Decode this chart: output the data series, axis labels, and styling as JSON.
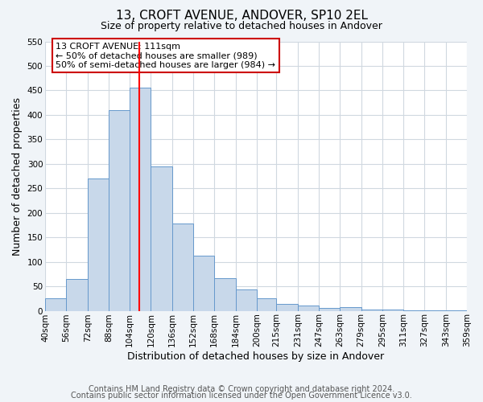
{
  "title": "13, CROFT AVENUE, ANDOVER, SP10 2EL",
  "subtitle": "Size of property relative to detached houses in Andover",
  "xlabel": "Distribution of detached houses by size in Andover",
  "ylabel": "Number of detached properties",
  "bin_labels": [
    "40sqm",
    "56sqm",
    "72sqm",
    "88sqm",
    "104sqm",
    "120sqm",
    "136sqm",
    "152sqm",
    "168sqm",
    "184sqm",
    "200sqm",
    "215sqm",
    "231sqm",
    "247sqm",
    "263sqm",
    "279sqm",
    "295sqm",
    "311sqm",
    "327sqm",
    "343sqm",
    "359sqm"
  ],
  "bar_values": [
    25,
    65,
    270,
    410,
    455,
    295,
    178,
    113,
    67,
    43,
    26,
    14,
    11,
    6,
    7,
    3,
    2,
    1,
    1,
    1
  ],
  "bin_edges": [
    40,
    56,
    72,
    88,
    104,
    120,
    136,
    152,
    168,
    184,
    200,
    215,
    231,
    247,
    263,
    279,
    295,
    311,
    327,
    343,
    359
  ],
  "bar_color": "#c8d8ea",
  "bar_edge_color": "#6699cc",
  "red_line_x": 111,
  "ylim": [
    0,
    550
  ],
  "yticks": [
    0,
    50,
    100,
    150,
    200,
    250,
    300,
    350,
    400,
    450,
    500,
    550
  ],
  "annotation_text": "13 CROFT AVENUE: 111sqm\n← 50% of detached houses are smaller (989)\n50% of semi-detached houses are larger (984) →",
  "annotation_box_color": "#ffffff",
  "annotation_box_edge": "#cc0000",
  "footer1": "Contains HM Land Registry data © Crown copyright and database right 2024.",
  "footer2": "Contains public sector information licensed under the Open Government Licence v3.0.",
  "background_color": "#f0f4f8",
  "plot_bg_color": "#ffffff",
  "grid_color": "#d0d8e0",
  "title_fontsize": 11,
  "subtitle_fontsize": 9,
  "axis_label_fontsize": 9,
  "tick_fontsize": 7.5,
  "footer_fontsize": 7,
  "annotation_fontsize": 8
}
